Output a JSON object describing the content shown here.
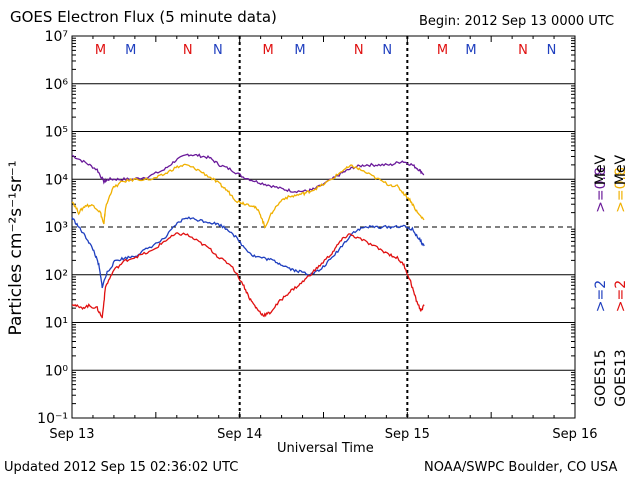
{
  "header": {
    "title": "GOES Electron Flux (5 minute data)",
    "begin": "Begin: 2012 Sep 13 0000 UTC"
  },
  "footer": {
    "updated": "Updated 2012 Sep 15 02:36:02 UTC",
    "credit": "NOAA/SWPC Boulder, CO USA"
  },
  "colors": {
    "goes15_2mev": "#1f3fbf",
    "goes13_2mev": "#e01010",
    "goes15_08mev": "#6a1a9a",
    "goes13_08mev": "#f0b000",
    "grid": "#000000"
  },
  "right_legend": {
    "goes15_label": "GOES15",
    "goes13_label": "GOES13",
    "goes15_2": ">=2",
    "goes15_08": ">=0.8",
    "goes13_2": ">=2",
    "goes13_08": ">=0.8",
    "mev_1": "MeV",
    "mev_2": "MeV"
  },
  "chart_data": {
    "type": "line",
    "title": "GOES Electron Flux (5 minute data)",
    "xlabel": "Universal Time",
    "ylabel": "Particles cm⁻²s⁻¹sr⁻¹",
    "yscale": "log",
    "ylim_exp": [
      -1,
      7
    ],
    "xlim_days": [
      0,
      3
    ],
    "x_ticks": [
      {
        "day": 0,
        "label": "Sep 13"
      },
      {
        "day": 1,
        "label": "Sep 14"
      },
      {
        "day": 2,
        "label": "Sep 15"
      },
      {
        "day": 3,
        "label": "Sep 16"
      }
    ],
    "y_ticks": [
      {
        "exp": 7,
        "label": "10⁷"
      },
      {
        "exp": 6,
        "label": "10⁶"
      },
      {
        "exp": 5,
        "label": "10⁵"
      },
      {
        "exp": 4,
        "label": "10⁴"
      },
      {
        "exp": 3,
        "label": "10³"
      },
      {
        "exp": 2,
        "label": "10²"
      },
      {
        "exp": 1,
        "label": "10¹"
      },
      {
        "exp": 0,
        "label": "10⁰"
      },
      {
        "exp": -1,
        "label": "10⁻¹"
      }
    ],
    "dashed_threshold_exp": 3,
    "markers": [
      {
        "day": 0.17,
        "label": "M",
        "color": "#e01010"
      },
      {
        "day": 0.35,
        "label": "M",
        "color": "#1f3fbf"
      },
      {
        "day": 0.69,
        "label": "N",
        "color": "#e01010"
      },
      {
        "day": 0.87,
        "label": "N",
        "color": "#1f3fbf"
      },
      {
        "day": 1.17,
        "label": "M",
        "color": "#e01010"
      },
      {
        "day": 1.36,
        "label": "M",
        "color": "#1f3fbf"
      },
      {
        "day": 1.71,
        "label": "N",
        "color": "#e01010"
      },
      {
        "day": 1.88,
        "label": "N",
        "color": "#1f3fbf"
      },
      {
        "day": 2.21,
        "label": "M",
        "color": "#e01010"
      },
      {
        "day": 2.38,
        "label": "M",
        "color": "#1f3fbf"
      },
      {
        "day": 2.69,
        "label": "N",
        "color": "#e01010"
      },
      {
        "day": 2.86,
        "label": "N",
        "color": "#1f3fbf"
      }
    ],
    "series": [
      {
        "name": "GOES15 >=0.8 MeV",
        "color": "#6a1a9a",
        "points": [
          [
            0,
            4.5
          ],
          [
            0.08,
            4.35
          ],
          [
            0.15,
            4.2
          ],
          [
            0.19,
            3.95
          ],
          [
            0.22,
            4.0
          ],
          [
            0.28,
            4.0
          ],
          [
            0.36,
            4.0
          ],
          [
            0.45,
            4.05
          ],
          [
            0.55,
            4.2
          ],
          [
            0.62,
            4.4
          ],
          [
            0.69,
            4.52
          ],
          [
            0.75,
            4.5
          ],
          [
            0.82,
            4.45
          ],
          [
            0.88,
            4.3
          ],
          [
            0.95,
            4.2
          ],
          [
            1.02,
            4.05
          ],
          [
            1.1,
            3.95
          ],
          [
            1.17,
            3.88
          ],
          [
            1.25,
            3.8
          ],
          [
            1.32,
            3.75
          ],
          [
            1.4,
            3.75
          ],
          [
            1.45,
            3.8
          ],
          [
            1.55,
            4.0
          ],
          [
            1.62,
            4.15
          ],
          [
            1.68,
            4.25
          ],
          [
            1.75,
            4.3
          ],
          [
            1.82,
            4.3
          ],
          [
            1.9,
            4.3
          ],
          [
            1.97,
            4.38
          ],
          [
            2.03,
            4.3
          ],
          [
            2.07,
            4.2
          ],
          [
            2.1,
            4.1
          ]
        ]
      },
      {
        "name": "GOES13 >=0.8 MeV",
        "color": "#f0b000",
        "points": [
          [
            0,
            3.55
          ],
          [
            0.04,
            3.3
          ],
          [
            0.08,
            3.45
          ],
          [
            0.13,
            3.45
          ],
          [
            0.17,
            3.3
          ],
          [
            0.19,
            3.05
          ],
          [
            0.2,
            3.4
          ],
          [
            0.24,
            3.8
          ],
          [
            0.3,
            3.95
          ],
          [
            0.38,
            4.0
          ],
          [
            0.48,
            4.0
          ],
          [
            0.55,
            4.1
          ],
          [
            0.62,
            4.25
          ],
          [
            0.68,
            4.3
          ],
          [
            0.75,
            4.2
          ],
          [
            0.82,
            4.05
          ],
          [
            0.88,
            3.9
          ],
          [
            0.93,
            3.75
          ],
          [
            0.98,
            3.55
          ],
          [
            1.02,
            3.5
          ],
          [
            1.08,
            3.45
          ],
          [
            1.12,
            3.3
          ],
          [
            1.15,
            3.0
          ],
          [
            1.2,
            3.35
          ],
          [
            1.26,
            3.6
          ],
          [
            1.32,
            3.65
          ],
          [
            1.38,
            3.7
          ],
          [
            1.42,
            3.75
          ],
          [
            1.48,
            3.85
          ],
          [
            1.55,
            4.0
          ],
          [
            1.62,
            4.2
          ],
          [
            1.67,
            4.28
          ],
          [
            1.72,
            4.2
          ],
          [
            1.8,
            4.05
          ],
          [
            1.88,
            3.9
          ],
          [
            1.94,
            3.85
          ],
          [
            1.98,
            3.7
          ],
          [
            2.02,
            3.55
          ],
          [
            2.06,
            3.3
          ],
          [
            2.1,
            3.15
          ]
        ]
      },
      {
        "name": "GOES15 >=2 MeV",
        "color": "#1f3fbf",
        "points": [
          [
            0,
            3.2
          ],
          [
            0.04,
            3.0
          ],
          [
            0.09,
            2.75
          ],
          [
            0.13,
            2.5
          ],
          [
            0.16,
            2.2
          ],
          [
            0.18,
            1.75
          ],
          [
            0.21,
            2.05
          ],
          [
            0.26,
            2.3
          ],
          [
            0.32,
            2.35
          ],
          [
            0.38,
            2.4
          ],
          [
            0.45,
            2.55
          ],
          [
            0.55,
            2.75
          ],
          [
            0.62,
            3.05
          ],
          [
            0.68,
            3.2
          ],
          [
            0.75,
            3.15
          ],
          [
            0.82,
            3.1
          ],
          [
            0.88,
            3.05
          ],
          [
            0.95,
            2.9
          ],
          [
            1.02,
            2.6
          ],
          [
            1.08,
            2.4
          ],
          [
            1.14,
            2.35
          ],
          [
            1.2,
            2.3
          ],
          [
            1.26,
            2.2
          ],
          [
            1.32,
            2.1
          ],
          [
            1.38,
            2.05
          ],
          [
            1.42,
            2.0
          ],
          [
            1.48,
            2.1
          ],
          [
            1.55,
            2.35
          ],
          [
            1.62,
            2.65
          ],
          [
            1.68,
            2.9
          ],
          [
            1.75,
            3.0
          ],
          [
            1.82,
            3.0
          ],
          [
            1.9,
            3.0
          ],
          [
            1.97,
            3.02
          ],
          [
            2.03,
            2.95
          ],
          [
            2.07,
            2.75
          ],
          [
            2.1,
            2.6
          ]
        ]
      },
      {
        "name": "GOES13 >=2 MeV",
        "color": "#e01010",
        "points": [
          [
            0,
            1.4
          ],
          [
            0.05,
            1.3
          ],
          [
            0.1,
            1.35
          ],
          [
            0.15,
            1.3
          ],
          [
            0.18,
            1.1
          ],
          [
            0.2,
            1.75
          ],
          [
            0.25,
            2.1
          ],
          [
            0.32,
            2.3
          ],
          [
            0.4,
            2.4
          ],
          [
            0.48,
            2.5
          ],
          [
            0.55,
            2.7
          ],
          [
            0.62,
            2.85
          ],
          [
            0.68,
            2.85
          ],
          [
            0.75,
            2.7
          ],
          [
            0.82,
            2.55
          ],
          [
            0.88,
            2.35
          ],
          [
            0.95,
            2.2
          ],
          [
            1.02,
            1.8
          ],
          [
            1.06,
            1.5
          ],
          [
            1.1,
            1.3
          ],
          [
            1.14,
            1.15
          ],
          [
            1.18,
            1.2
          ],
          [
            1.24,
            1.45
          ],
          [
            1.3,
            1.65
          ],
          [
            1.36,
            1.8
          ],
          [
            1.42,
            2.0
          ],
          [
            1.48,
            2.2
          ],
          [
            1.55,
            2.45
          ],
          [
            1.6,
            2.7
          ],
          [
            1.65,
            2.85
          ],
          [
            1.72,
            2.75
          ],
          [
            1.8,
            2.6
          ],
          [
            1.88,
            2.45
          ],
          [
            1.94,
            2.35
          ],
          [
            1.98,
            2.2
          ],
          [
            2.02,
            1.85
          ],
          [
            2.05,
            1.5
          ],
          [
            2.08,
            1.25
          ],
          [
            2.1,
            1.35
          ]
        ]
      }
    ]
  }
}
